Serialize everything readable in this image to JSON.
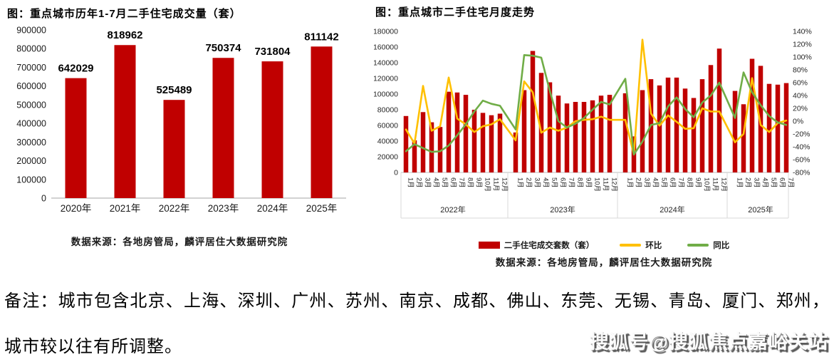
{
  "chart_data": [
    {
      "id": "annual-resale-volume",
      "type": "bar",
      "title": "图：重点城市历年1-7月二手住宅成交量（套）",
      "categories": [
        "2020年",
        "2021年",
        "2022年",
        "2023年",
        "2024年",
        "2025年"
      ],
      "values": [
        642029,
        818962,
        525489,
        750374,
        731804,
        811142
      ],
      "ylim": [
        0,
        900000
      ],
      "ytick_step": 100000,
      "bar_color": "#C00000",
      "grid": false,
      "data_labels": true,
      "source": "数据来源：各地房管局，麟评居住大数据研究院"
    },
    {
      "id": "monthly-resale-trend",
      "type": "combo",
      "title": "图：重点城市二手住宅月度走势",
      "year_groups": [
        {
          "label": "2022年",
          "months": [
            "1月",
            "2月",
            "3月",
            "4月",
            "5月",
            "6月",
            "7月",
            "8月",
            "9月",
            "10月",
            "11月",
            "12月"
          ]
        },
        {
          "label": "2023年",
          "months": [
            "1月",
            "2月",
            "3月",
            "4月",
            "5月",
            "6月",
            "7月",
            "8月",
            "9月",
            "10月",
            "11月",
            "12月"
          ]
        },
        {
          "label": "2024年",
          "months": [
            "1月",
            "2月",
            "3月",
            "4月",
            "5月",
            "6月",
            "7月",
            "8月",
            "9月",
            "10月",
            "11月",
            "12月"
          ]
        },
        {
          "label": "2025年",
          "months": [
            "1月",
            "2月",
            "3月",
            "4月",
            "5月",
            "6月",
            "7月"
          ]
        }
      ],
      "left_axis": {
        "min": 0,
        "max": 180000,
        "step": 20000
      },
      "right_axis": {
        "min": -80,
        "max": 140,
        "step": 20,
        "suffix": "%"
      },
      "series": [
        {
          "name": "二手住宅成交套数（套）",
          "type": "bar",
          "axis": "left",
          "color": "#C00000",
          "values": [
            72000,
            41000,
            77000,
            64000,
            58000,
            103000,
            102000,
            99000,
            80000,
            76000,
            73000,
            75000,
            51000,
            105000,
            155000,
            127000,
            115000,
            98000,
            88000,
            90000,
            90000,
            92000,
            98000,
            99000,
            101000,
            46000,
            105000,
            119000,
            111000,
            121000,
            121000,
            107000,
            95000,
            119000,
            137000,
            158000,
            104000,
            87000,
            145000,
            136000,
            113000,
            112000,
            114000
          ]
        },
        {
          "name": "环比",
          "type": "line",
          "axis": "right",
          "color": "#FFC000",
          "values": [
            -13,
            -35,
            55,
            -15,
            -8,
            68,
            4,
            -5,
            -17,
            -8,
            -5,
            3,
            -30,
            62,
            45,
            -18,
            -10,
            -15,
            -10,
            0,
            2,
            3,
            7,
            2,
            2,
            -52,
            127,
            12,
            -7,
            9,
            -1,
            -12,
            -11,
            20,
            15,
            15,
            -33,
            -20,
            67,
            -6,
            -17,
            -3,
            1
          ]
        },
        {
          "name": "同比",
          "type": "line",
          "axis": "right",
          "color": "#70AD47",
          "values": [
            -47,
            -36,
            -42,
            -48,
            -47,
            -38,
            -22,
            -5,
            15,
            32,
            27,
            24,
            -13,
            103,
            102,
            99,
            47,
            0,
            -10,
            -4,
            5,
            18,
            30,
            26,
            66,
            -52,
            -32,
            -6,
            -3,
            23,
            37,
            19,
            6,
            29,
            40,
            60,
            5,
            76,
            45,
            25,
            8,
            -2,
            -6
          ]
        }
      ],
      "legend_position": "bottom",
      "source": "数据来源：各地房管局，麟评居住大数据研究院"
    }
  ],
  "note": {
    "line1": "备注：城市包含北京、上海、深圳、广州、苏州、南京、成都、佛山、东莞、无锡、青岛、厦门、郑州，",
    "line2": "城市较以往有所调整。"
  },
  "watermark": {
    "text": "搜狐号@搜狐焦点嘉峪关站"
  }
}
